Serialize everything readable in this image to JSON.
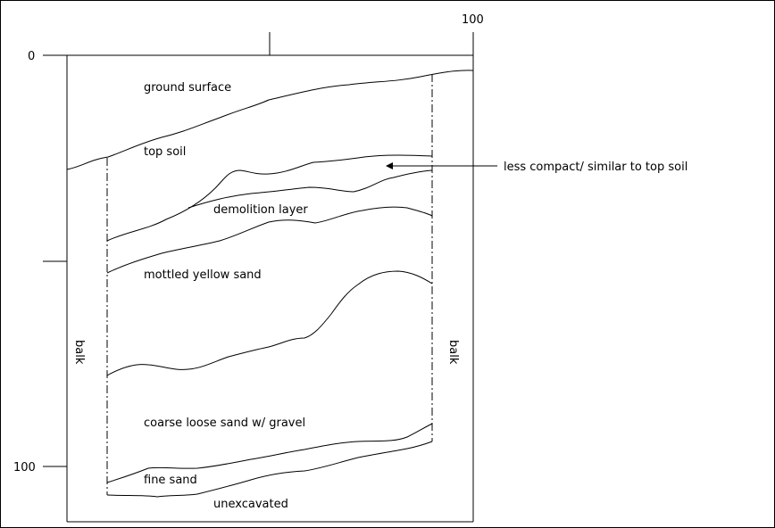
{
  "diagram": {
    "axis_ticks": {
      "top_right": "100",
      "left_top": "0",
      "left_bottom": "100"
    },
    "layers": {
      "ground_surface": "ground surface",
      "top_soil": "top soil",
      "demolition_layer": "demolition layer",
      "mottled_yellow_sand": "mottled yellow sand",
      "coarse_loose_sand": "coarse loose sand w/ gravel",
      "fine_sand": "fine sand",
      "unexcavated": "unexcavated"
    },
    "balk_left": "balk",
    "balk_right": "balk",
    "annotation": "less compact/ similar to top soil"
  }
}
